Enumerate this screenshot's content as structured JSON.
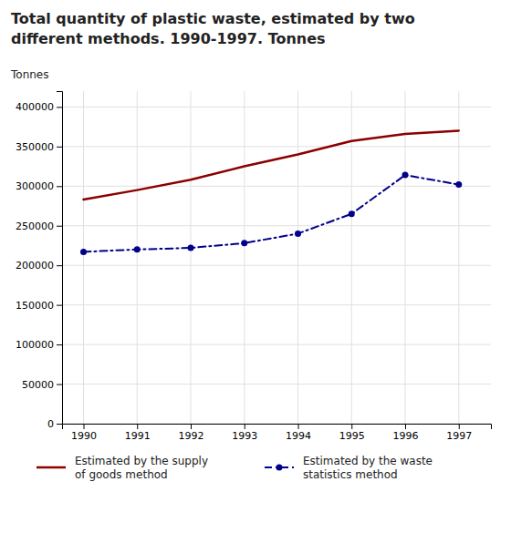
{
  "chart_data": {
    "type": "line",
    "title": [
      "Total quantity of plastic waste, estimated by two",
      "different methods. 1990-1997. Tonnes"
    ],
    "y_label": "Tonnes",
    "x": [
      1990,
      1991,
      1992,
      1993,
      1994,
      1995,
      1996,
      1997
    ],
    "series": [
      {
        "name": "Estimated by the supply\nof goods method",
        "color": "#8B0000",
        "line_style": "solid",
        "marker": "none",
        "values": [
          283000,
          295000,
          308000,
          325000,
          340000,
          357000,
          366000,
          370000
        ]
      },
      {
        "name": "Estimated by the waste\nstatistics method",
        "color": "#00008B",
        "line_style": "dashdot",
        "marker": "dot",
        "values": [
          217000,
          220000,
          222000,
          228000,
          240000,
          265000,
          314000,
          302000
        ]
      }
    ],
    "xlim": [
      1989.6,
      1997.6
    ],
    "xticks": [
      1990,
      1991,
      1992,
      1993,
      1994,
      1995,
      1996,
      1997
    ],
    "ylim": [
      0,
      420000
    ],
    "yticks": [
      0,
      50000,
      100000,
      150000,
      200000,
      250000,
      300000,
      350000,
      400000
    ],
    "grid": true,
    "legend": "bottom"
  }
}
